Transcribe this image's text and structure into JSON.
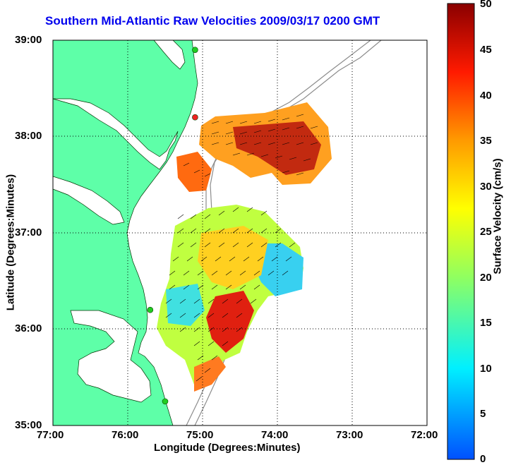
{
  "title": "Southern Mid-Atlantic Raw Velocities 2009/03/17 0200 GMT",
  "x_axis": {
    "label": "Longitude (Degrees:Minutes)",
    "ticks": [
      "77:00",
      "76:00",
      "75:00",
      "74:00",
      "73:00",
      "72:00"
    ]
  },
  "y_axis": {
    "label": "Latitude (Degrees:Minutes)",
    "ticks": [
      "39:00",
      "38:00",
      "37:00",
      "36:00",
      "35:00"
    ]
  },
  "colorbar": {
    "label": "Surface Velocity (cm/s)",
    "ticks": [
      "50",
      "45",
      "40",
      "35",
      "30",
      "25",
      "20",
      "15",
      "10",
      "5",
      "0"
    ],
    "range": [
      0,
      50
    ]
  },
  "colors": {
    "land": "#5effa8",
    "title": "#0000ee"
  },
  "stations": [
    {
      "lon": -75.1,
      "lat": 38.9,
      "color": "#22cc22"
    },
    {
      "lon": -75.1,
      "lat": 38.2,
      "color": "#ee2222"
    },
    {
      "lon": -75.7,
      "lat": 36.2,
      "color": "#22cc22"
    },
    {
      "lon": -75.5,
      "lat": 35.25,
      "color": "#22cc22"
    }
  ]
}
